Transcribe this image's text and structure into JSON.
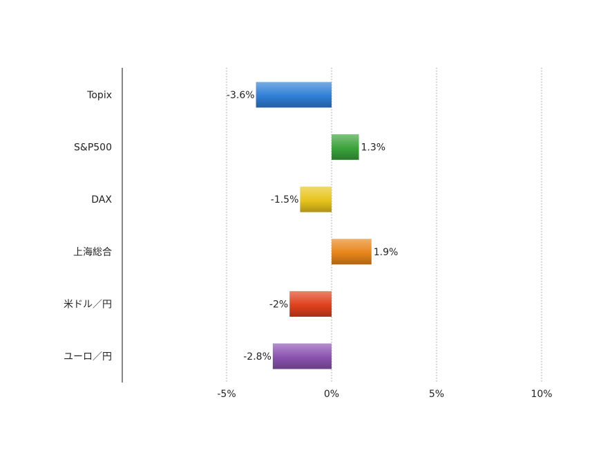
{
  "chart_data": {
    "type": "bar",
    "orientation": "horizontal",
    "categories": [
      "Topix",
      "S&P500",
      "DAX",
      "上海総合",
      "米ドル／円",
      "ユーロ／円"
    ],
    "values": [
      -3.6,
      1.3,
      -1.5,
      1.9,
      -2,
      -2.8
    ],
    "value_labels": [
      "-3.6%",
      "1.3%",
      "-1.5%",
      "1.9%",
      "-2%",
      "-2.8%"
    ],
    "bar_colors": [
      "#2f7fd6",
      "#3aa33a",
      "#e8c41c",
      "#e8861a",
      "#e0401c",
      "#8a52b0"
    ],
    "xlim": [
      -10,
      10
    ],
    "x_ticks": [
      -5,
      0,
      5,
      10
    ],
    "x_tick_labels": [
      "-5%",
      "0%",
      "5%",
      "10%"
    ],
    "grid": "vertical-dotted",
    "legend": "none",
    "title": "",
    "xlabel": "",
    "ylabel": ""
  }
}
